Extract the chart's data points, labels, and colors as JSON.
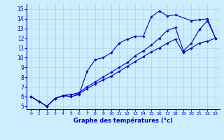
{
  "xlabel": "Graphe des températures (°c)",
  "bg_color": "#cceeff",
  "line_color": "#0000cc",
  "ylim": [
    4.7,
    15.5
  ],
  "xlim": [
    -0.5,
    23.5
  ],
  "line1_x": [
    0,
    1,
    2,
    3,
    4,
    5,
    6,
    7,
    8,
    9,
    10,
    11,
    12,
    13,
    14,
    15,
    16,
    17,
    18,
    20,
    21,
    22,
    23
  ],
  "line1_y": [
    6.0,
    5.5,
    5.0,
    5.8,
    6.1,
    6.0,
    6.2,
    8.6,
    9.8,
    10.0,
    10.5,
    11.5,
    11.9,
    12.2,
    12.2,
    14.2,
    14.8,
    14.3,
    14.4,
    13.8,
    13.9,
    14.0,
    12.0
  ],
  "line2_x": [
    0,
    1,
    2,
    3,
    4,
    5,
    6,
    7,
    8,
    9,
    10,
    11,
    12,
    13,
    14,
    15,
    16,
    17,
    18,
    19,
    20,
    21,
    22,
    23
  ],
  "line2_y": [
    6.0,
    5.5,
    5.0,
    5.8,
    6.1,
    6.2,
    6.4,
    7.0,
    7.5,
    8.0,
    8.5,
    9.0,
    9.5,
    10.2,
    10.7,
    11.3,
    12.0,
    12.8,
    13.1,
    10.7,
    11.5,
    12.9,
    13.8,
    12.0
  ],
  "line3_x": [
    0,
    1,
    2,
    3,
    4,
    5,
    6,
    7,
    8,
    9,
    10,
    11,
    12,
    13,
    14,
    15,
    16,
    17,
    18,
    19,
    20,
    21,
    22,
    23
  ],
  "line3_y": [
    6.0,
    5.5,
    5.0,
    5.8,
    6.1,
    6.2,
    6.3,
    6.8,
    7.3,
    7.7,
    8.1,
    8.6,
    9.1,
    9.6,
    10.1,
    10.6,
    11.0,
    11.5,
    11.9,
    10.5,
    11.0,
    11.5,
    11.7,
    12.0
  ],
  "x_tick_fontsize": 4.5,
  "y_tick_fontsize": 5.5,
  "xlabel_fontsize": 6.0
}
